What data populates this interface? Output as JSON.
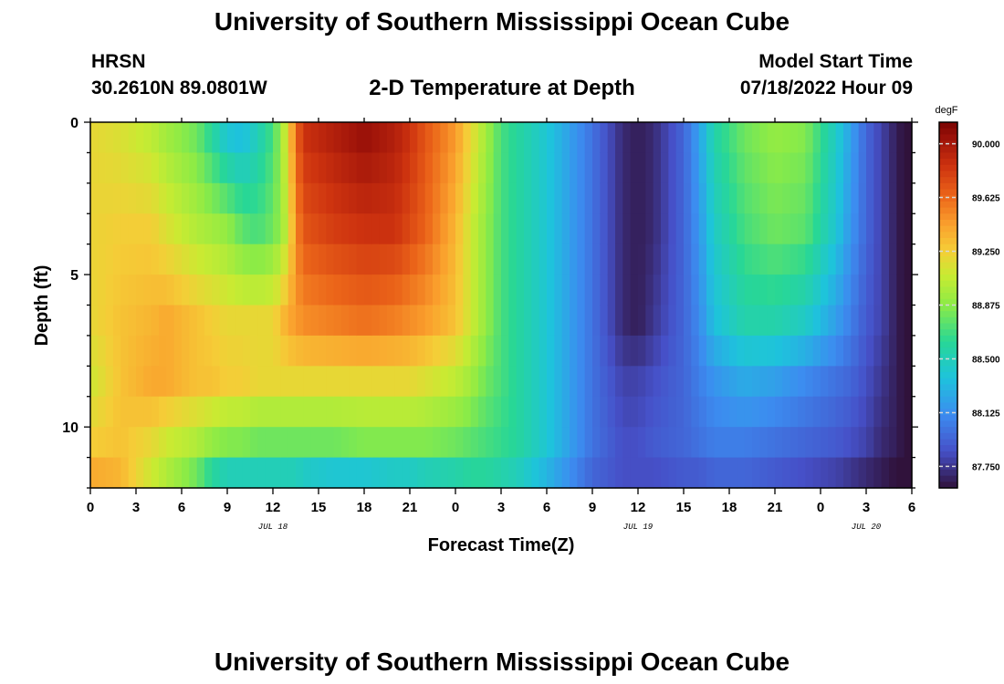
{
  "header": {
    "title": "University of Southern Mississippi Ocean Cube",
    "station": "HRSN",
    "coords": "30.2610N  89.0801W",
    "subtitle": "2-D Temperature at Depth",
    "model_start_label": "Model Start Time",
    "model_start_value": "07/18/2022 Hour 09"
  },
  "footer": {
    "title": "University of Southern Mississippi Ocean Cube"
  },
  "chart_data": {
    "type": "heatmap",
    "title": "2-D Temperature at Depth",
    "xlabel": "Forecast Time(Z)",
    "ylabel": "Depth (ft)",
    "x_tick_labels": [
      "0",
      "3",
      "6",
      "9",
      "12",
      "15",
      "18",
      "21",
      "0",
      "3",
      "6",
      "9",
      "12",
      "15",
      "18",
      "21",
      "0",
      "3",
      "6"
    ],
    "x_hours": [
      0,
      54
    ],
    "date_labels": [
      {
        "label": "JUL 18",
        "hour": 12
      },
      {
        "label": "JUL 19",
        "hour": 36
      },
      {
        "label": "JUL 20",
        "hour": 51
      }
    ],
    "y_tick_labels": [
      "0",
      "5",
      "10"
    ],
    "y_ticks": [
      0,
      5,
      10
    ],
    "ylim": [
      0,
      12
    ],
    "depth_levels": [
      0.5,
      1.5,
      2.5,
      3.5,
      4.5,
      5.5,
      6.5,
      7.5,
      8.5,
      9.5,
      10.5,
      11.5
    ],
    "colorbar": {
      "units": "degF",
      "tick_labels": [
        "90.000",
        "89.625",
        "89.250",
        "88.875",
        "88.500",
        "88.125",
        "87.750"
      ],
      "ticks": [
        90.0,
        89.625,
        89.25,
        88.875,
        88.5,
        88.125,
        87.75
      ],
      "range": [
        87.6,
        90.15
      ]
    },
    "temperature_profile": {
      "hours": [
        0,
        2,
        4,
        5,
        7,
        8,
        9,
        10,
        11,
        12,
        12.5,
        13,
        13.5,
        14,
        16,
        18,
        20,
        21,
        22,
        24,
        25,
        26,
        27,
        28,
        30,
        33,
        35,
        36,
        37,
        39,
        40,
        41,
        43,
        45,
        47,
        49,
        50,
        51,
        52,
        53,
        54
      ],
      "depth_keys": [
        0.5,
        3.5,
        6.5,
        8.5,
        10.5,
        11.5
      ],
      "values": [
        [
          89.2,
          89.22,
          89.2,
          89.1,
          89.25,
          89.4
        ],
        [
          89.15,
          89.25,
          89.3,
          89.3,
          89.3,
          89.35
        ],
        [
          89.05,
          89.25,
          89.35,
          89.4,
          89.2,
          89.1
        ],
        [
          88.95,
          89.15,
          89.4,
          89.4,
          89.1,
          89.0
        ],
        [
          88.8,
          89.0,
          89.3,
          89.3,
          89.0,
          88.8
        ],
        [
          88.6,
          88.95,
          89.25,
          89.3,
          88.9,
          88.6
        ],
        [
          88.4,
          88.9,
          89.2,
          89.25,
          88.85,
          88.5
        ],
        [
          88.35,
          88.75,
          89.2,
          89.25,
          88.85,
          88.5
        ],
        [
          88.5,
          88.7,
          89.2,
          89.2,
          88.8,
          88.5
        ],
        [
          88.7,
          88.8,
          89.2,
          89.2,
          88.8,
          88.5
        ],
        [
          88.9,
          88.9,
          89.3,
          89.2,
          88.8,
          88.5
        ],
        [
          89.2,
          89.1,
          89.4,
          89.2,
          88.8,
          88.5
        ],
        [
          89.6,
          89.5,
          89.45,
          89.2,
          88.8,
          88.5
        ],
        [
          89.85,
          89.7,
          89.5,
          89.2,
          88.8,
          88.45
        ],
        [
          89.95,
          89.8,
          89.55,
          89.2,
          88.8,
          88.4
        ],
        [
          90.05,
          89.85,
          89.6,
          89.2,
          88.85,
          88.4
        ],
        [
          89.95,
          89.85,
          89.55,
          89.2,
          88.85,
          88.45
        ],
        [
          89.85,
          89.75,
          89.5,
          89.2,
          88.85,
          88.45
        ],
        [
          89.7,
          89.65,
          89.45,
          89.15,
          88.85,
          88.5
        ],
        [
          89.45,
          89.35,
          89.3,
          89.05,
          88.8,
          88.55
        ],
        [
          89.2,
          89.1,
          89.1,
          88.95,
          88.75,
          88.6
        ],
        [
          88.95,
          88.9,
          88.9,
          88.8,
          88.7,
          88.6
        ],
        [
          88.7,
          88.7,
          88.7,
          88.7,
          88.65,
          88.55
        ],
        [
          88.6,
          88.6,
          88.6,
          88.6,
          88.6,
          88.5
        ],
        [
          88.4,
          88.4,
          88.4,
          88.4,
          88.4,
          88.3
        ],
        [
          88.0,
          88.0,
          88.0,
          88.0,
          88.0,
          87.95
        ],
        [
          87.7,
          87.7,
          87.7,
          87.8,
          87.85,
          87.85
        ],
        [
          87.65,
          87.65,
          87.65,
          87.8,
          87.85,
          87.85
        ],
        [
          87.7,
          87.7,
          87.75,
          87.85,
          87.9,
          87.85
        ],
        [
          87.95,
          87.95,
          87.95,
          87.95,
          87.95,
          87.9
        ],
        [
          88.2,
          88.15,
          88.1,
          88.05,
          88.0,
          87.9
        ],
        [
          88.55,
          88.45,
          88.35,
          88.15,
          88.05,
          87.95
        ],
        [
          88.8,
          88.7,
          88.55,
          88.25,
          88.05,
          87.95
        ],
        [
          88.9,
          88.8,
          88.55,
          88.2,
          88.0,
          87.9
        ],
        [
          88.85,
          88.75,
          88.45,
          88.1,
          87.95,
          87.85
        ],
        [
          88.45,
          88.4,
          88.2,
          88.0,
          87.9,
          87.8
        ],
        [
          88.2,
          88.15,
          88.05,
          87.95,
          87.85,
          87.75
        ],
        [
          87.95,
          87.95,
          87.9,
          87.85,
          87.8,
          87.7
        ],
        [
          87.8,
          87.8,
          87.8,
          87.75,
          87.7,
          87.65
        ],
        [
          87.65,
          87.65,
          87.65,
          87.65,
          87.65,
          87.6
        ],
        [
          87.55,
          87.55,
          87.55,
          87.55,
          87.55,
          87.55
        ]
      ]
    }
  }
}
